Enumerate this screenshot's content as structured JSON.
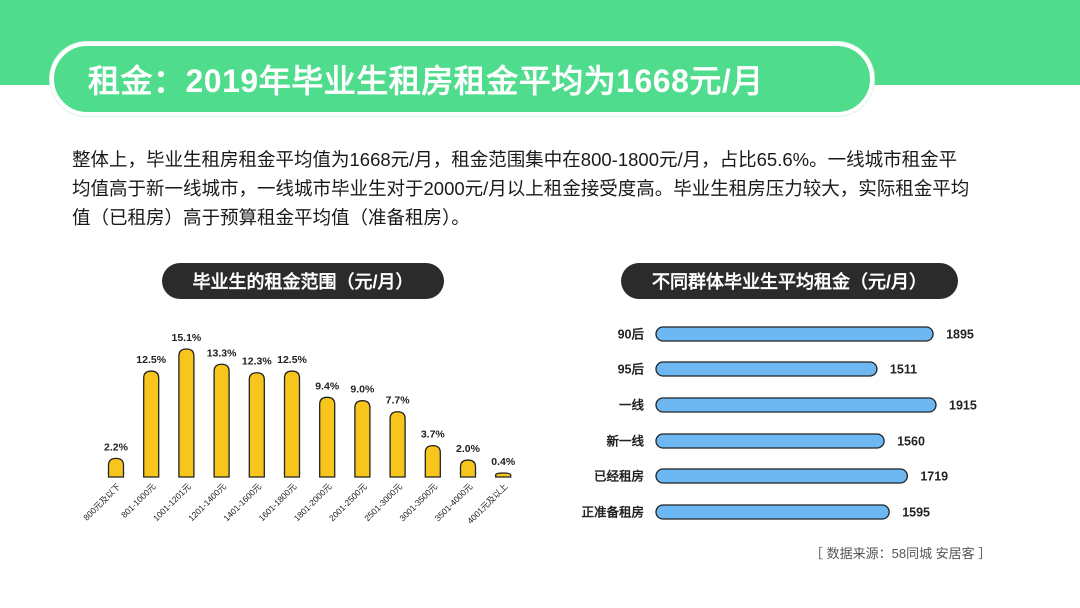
{
  "header": {
    "title": "租金：2019年毕业生租房租金平均为1668元/月"
  },
  "intro_text": "整体上，毕业生租房租金平均值为1668元/月，租金范围集中在800-1800元/月，占比65.6%。一线城市租金平均值高于新一线城市，一线城市毕业生对于2000元/月以上租金接受度高。毕业生租房压力较大，实际租金平均值（已租房）高于预算租金平均值（准备租房）。",
  "source": "［ 数据来源：58同城  安居客 ］",
  "colors": {
    "brand_green": "#4fdc8d",
    "bar_yellow": "#f8c51c",
    "bar_blue": "#6db8f2",
    "bar_outline": "#222222",
    "pill_dark": "#2b2b2b"
  },
  "chart_data": [
    {
      "type": "bar",
      "title": "毕业生的租金范围（元/月）",
      "categories": [
        "800元及以下",
        "801-1000元",
        "1001-1201元",
        "1201-1400元",
        "1401-1600元",
        "1601-1800元",
        "1801-2000元",
        "2001-2500元",
        "2501-3000元",
        "3001-3500元",
        "3501-4000元",
        "4001元及以上"
      ],
      "values": [
        2.2,
        12.5,
        15.1,
        13.3,
        12.3,
        12.5,
        9.4,
        9.0,
        7.7,
        3.7,
        2.0,
        0.4
      ],
      "value_labels": [
        "2.2%",
        "12.5%",
        "15.1%",
        "13.3%",
        "12.3%",
        "12.5%",
        "9.4%",
        "9.0%",
        "7.7%",
        "3.7%",
        "2.0%",
        "0.4%"
      ],
      "ylim": [
        0,
        15.1
      ],
      "grid": false
    },
    {
      "type": "bar",
      "orientation": "horizontal",
      "title": "不同群体毕业生平均租金（元/月）",
      "categories": [
        "90后",
        "95后",
        "一线",
        "新一线",
        "已经租房",
        "正准备租房"
      ],
      "values": [
        1895,
        1511,
        1915,
        1560,
        1719,
        1595
      ],
      "value_labels": [
        "1895",
        "1511",
        "1915",
        "1560",
        "1719",
        "1595"
      ],
      "grid": false
    }
  ]
}
